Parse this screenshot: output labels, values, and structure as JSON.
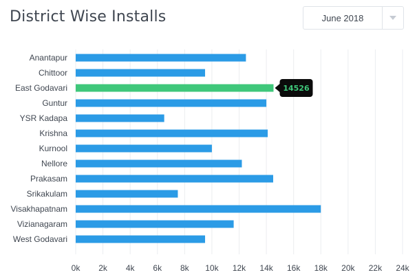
{
  "header": {
    "title": "District Wise Installs"
  },
  "month_select": {
    "value": "June 2018",
    "arrow_icon": "chevron-down-icon"
  },
  "colors": {
    "bar": "#2b9be6",
    "highlight": "#3fc77a",
    "tooltip_bg": "#0b0b0b",
    "tooltip_text": "#3fc77a",
    "grid": "#ebedf0",
    "text": "#3f4650"
  },
  "chart_data": {
    "type": "bar",
    "orientation": "horizontal",
    "title": "District Wise Installs",
    "categories": [
      "Anantapur",
      "Chittoor",
      "East Godavari",
      "Guntur",
      "YSR Kadapa",
      "Krishna",
      "Kurnool",
      "Nellore",
      "Prakasam",
      "Srikakulam",
      "Visakhapatnam",
      "Vizianagaram",
      "West Godavari"
    ],
    "values": [
      12500,
      9500,
      14526,
      14000,
      6500,
      14100,
      10000,
      12200,
      14500,
      7500,
      18000,
      11600,
      9500
    ],
    "xlim": [
      0,
      24000
    ],
    "xticks": [
      "0k",
      "2k",
      "4k",
      "6k",
      "8k",
      "10k",
      "12k",
      "14k",
      "16k",
      "18k",
      "20k",
      "22k",
      "24k"
    ],
    "grid": true,
    "highlight": {
      "category": "East Godavari",
      "label": "14526"
    }
  }
}
